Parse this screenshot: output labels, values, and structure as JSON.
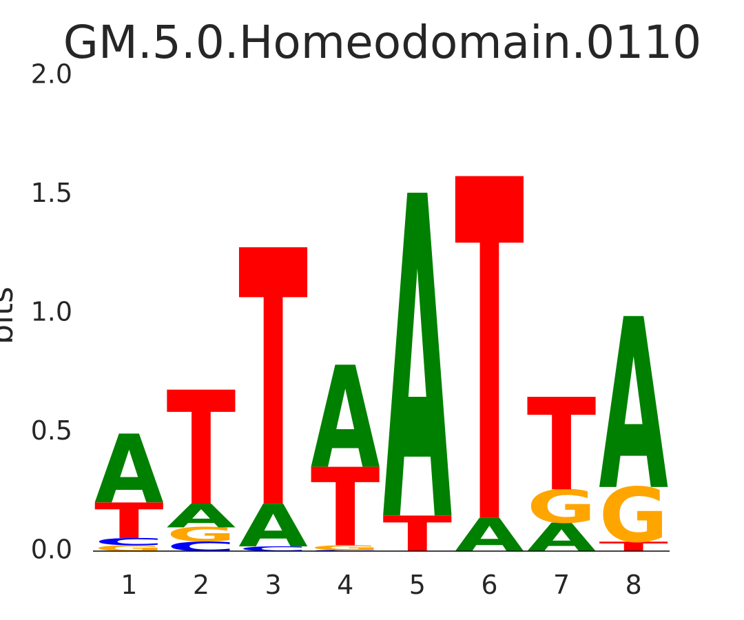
{
  "chart_data": {
    "type": "sequence-logo",
    "title": "GM.5.0.Homeodomain.0110",
    "ylabel": "bits",
    "ylim": [
      0,
      2.0
    ],
    "yticks": [
      "0.0",
      "0.5",
      "1.0",
      "1.5",
      "2.0"
    ],
    "positions": [
      "1",
      "2",
      "3",
      "4",
      "5",
      "6",
      "7",
      "8"
    ],
    "colors": {
      "A": "#008000",
      "C": "#0000ff",
      "G": "#ffa500",
      "T": "#ff0000"
    },
    "stacks": [
      [
        {
          "letter": "G",
          "bits": 0.025
        },
        {
          "letter": "C",
          "bits": 0.03
        },
        {
          "letter": "T",
          "bits": 0.15
        },
        {
          "letter": "A",
          "bits": 0.29
        }
      ],
      [
        {
          "letter": "C",
          "bits": 0.04
        },
        {
          "letter": "G",
          "bits": 0.06
        },
        {
          "letter": "A",
          "bits": 0.1
        },
        {
          "letter": "T",
          "bits": 0.48
        }
      ],
      [
        {
          "letter": "C",
          "bits": 0.02
        },
        {
          "letter": "A",
          "bits": 0.18
        },
        {
          "letter": "T",
          "bits": 1.08
        }
      ],
      [
        {
          "letter": "C",
          "bits": 0.005
        },
        {
          "letter": "G",
          "bits": 0.02
        },
        {
          "letter": "T",
          "bits": 0.33
        },
        {
          "letter": "A",
          "bits": 0.43
        }
      ],
      [
        {
          "letter": "T",
          "bits": 0.15
        },
        {
          "letter": "A",
          "bits": 1.36
        }
      ],
      [
        {
          "letter": "A",
          "bits": 0.14
        },
        {
          "letter": "T",
          "bits": 1.44
        }
      ],
      [
        {
          "letter": "A",
          "bits": 0.12
        },
        {
          "letter": "G",
          "bits": 0.14
        },
        {
          "letter": "T",
          "bits": 0.39
        }
      ],
      [
        {
          "letter": "T",
          "bits": 0.04
        },
        {
          "letter": "G",
          "bits": 0.23
        },
        {
          "letter": "A",
          "bits": 0.72
        }
      ]
    ]
  }
}
